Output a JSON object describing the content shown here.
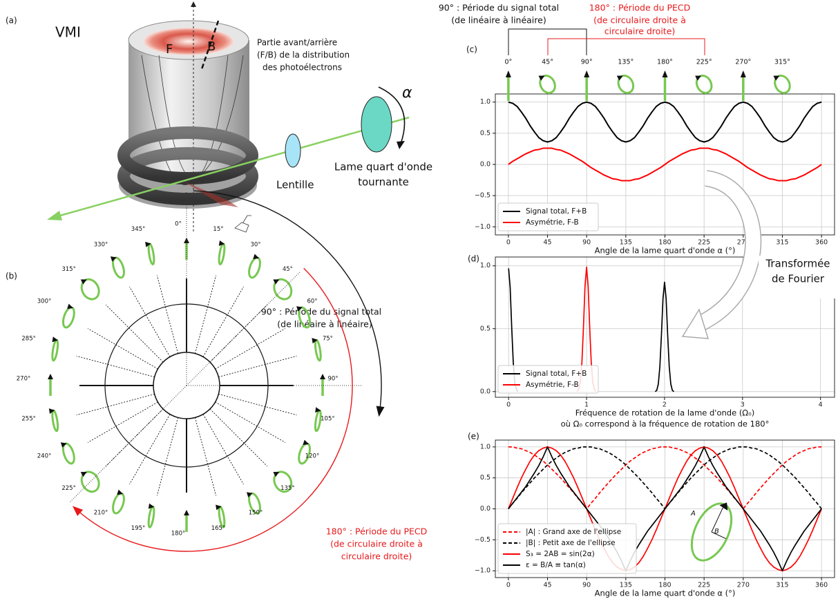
{
  "diagram": {
    "panel": "(a)",
    "title": "VMI",
    "front": "F",
    "back": "B",
    "distribution_label": [
      "Partie avant/arrière",
      "(F/B) de la distribution",
      "des photoélectrons"
    ],
    "lens": "Lentille",
    "waveplate": [
      "Lame quart d'onde",
      "tournante"
    ],
    "angle_symbol": "α"
  },
  "polar_diagram": {
    "panel": "(b)",
    "angles": [
      {
        "value": 0,
        "label": "0°"
      },
      {
        "value": 15,
        "label": "15°"
      },
      {
        "value": 30,
        "label": "30°"
      },
      {
        "value": 45,
        "label": "45°"
      },
      {
        "value": 60,
        "label": "60°"
      },
      {
        "value": 75,
        "label": "75°"
      },
      {
        "value": 90,
        "label": "90°"
      },
      {
        "value": 105,
        "label": "105°"
      },
      {
        "value": 120,
        "label": "120°"
      },
      {
        "value": 135,
        "label": "135°"
      },
      {
        "value": 150,
        "label": "150°"
      },
      {
        "value": 165,
        "label": "165°"
      },
      {
        "value": 180,
        "label": "180°"
      },
      {
        "value": 195,
        "label": "195°"
      },
      {
        "value": 210,
        "label": "210°"
      },
      {
        "value": 225,
        "label": "225°"
      },
      {
        "value": 240,
        "label": "240°"
      },
      {
        "value": 255,
        "label": "255°"
      },
      {
        "value": 270,
        "label": "270°"
      },
      {
        "value": 285,
        "label": "285°"
      },
      {
        "value": 300,
        "label": "300°"
      },
      {
        "value": 315,
        "label": "315°"
      },
      {
        "value": 330,
        "label": "330°"
      },
      {
        "value": 345,
        "label": "345°"
      }
    ]
  },
  "annotations": {
    "total_period_top": [
      "90° : Période du signal total",
      "(de linéaire à linéaire)"
    ],
    "pecd_period_top": [
      "180° : Période du PECD",
      "(de circulaire droite à",
      "circulaire droite)"
    ],
    "total_period_polar": [
      "90° : Période du signal total",
      "(de linéaire à linéaire)"
    ],
    "pecd_period_polar": [
      "180° : Période du PECD",
      "(de circulaire droite à",
      "circulaire droite)"
    ],
    "fourier": [
      "Transformée",
      "de Fourier"
    ]
  },
  "chart_data": [
    {
      "type": "line",
      "panel": "(c)",
      "xlabel": "Angle de la lame quart d'onde α (°)",
      "x": [
        0,
        5,
        10,
        15,
        20,
        25,
        30,
        35,
        40,
        45,
        50,
        55,
        60,
        65,
        70,
        75,
        80,
        85,
        90,
        95,
        100,
        105,
        110,
        115,
        120,
        125,
        130,
        135,
        140,
        145,
        150,
        155,
        160,
        165,
        170,
        175,
        180,
        185,
        190,
        195,
        200,
        205,
        210,
        215,
        220,
        225,
        230,
        235,
        240,
        245,
        250,
        255,
        260,
        265,
        270,
        275,
        280,
        285,
        290,
        295,
        300,
        305,
        310,
        315,
        320,
        325,
        330,
        335,
        340,
        345,
        350,
        355,
        360
      ],
      "series": [
        {
          "name": "Signal total, F+B",
          "color": "#000000",
          "values": [
            1,
            0.98,
            0.93,
            0.84,
            0.74,
            0.62,
            0.52,
            0.43,
            0.38,
            0.36,
            0.38,
            0.43,
            0.52,
            0.62,
            0.74,
            0.84,
            0.93,
            0.98,
            1,
            0.98,
            0.93,
            0.84,
            0.74,
            0.62,
            0.52,
            0.43,
            0.38,
            0.36,
            0.38,
            0.43,
            0.52,
            0.62,
            0.74,
            0.84,
            0.93,
            0.98,
            1,
            0.98,
            0.93,
            0.84,
            0.74,
            0.62,
            0.52,
            0.43,
            0.38,
            0.36,
            0.38,
            0.43,
            0.52,
            0.62,
            0.74,
            0.84,
            0.93,
            0.98,
            1,
            0.98,
            0.93,
            0.84,
            0.74,
            0.62,
            0.52,
            0.43,
            0.38,
            0.36,
            0.38,
            0.43,
            0.52,
            0.62,
            0.74,
            0.84,
            0.93,
            0.98,
            1
          ]
        },
        {
          "name": "Asymétrie, F-B",
          "color": "#ff0000",
          "values": [
            0,
            0.05,
            0.09,
            0.13,
            0.17,
            0.2,
            0.23,
            0.24,
            0.26,
            0.26,
            0.26,
            0.24,
            0.23,
            0.2,
            0.17,
            0.13,
            0.09,
            0.05,
            0,
            -0.05,
            -0.09,
            -0.13,
            -0.17,
            -0.2,
            -0.23,
            -0.24,
            -0.26,
            -0.26,
            -0.26,
            -0.24,
            -0.23,
            -0.2,
            -0.17,
            -0.13,
            -0.09,
            -0.05,
            0,
            0.05,
            0.09,
            0.13,
            0.17,
            0.2,
            0.23,
            0.24,
            0.26,
            0.26,
            0.26,
            0.24,
            0.23,
            0.2,
            0.17,
            0.13,
            0.09,
            0.05,
            0,
            -0.05,
            -0.09,
            -0.13,
            -0.17,
            -0.2,
            -0.23,
            -0.24,
            -0.26,
            -0.26,
            -0.26,
            -0.24,
            -0.23,
            -0.2,
            -0.17,
            -0.13,
            -0.09,
            -0.05,
            0
          ]
        }
      ],
      "xlim": [
        -15,
        375
      ],
      "ylim": [
        -1.13,
        1.13
      ],
      "xticks": [
        0,
        45,
        90,
        135,
        180,
        225,
        270,
        315,
        360
      ],
      "yticks": [
        {
          "value": -1,
          "label": "−1.0"
        },
        {
          "value": -0.5,
          "label": "−0.5"
        },
        {
          "value": 0,
          "label": "0.0"
        },
        {
          "value": 0.5,
          "label": "0.5"
        },
        {
          "value": 1,
          "label": "1.0"
        }
      ],
      "grid": true,
      "legend": "lower left",
      "polarization_markers": [
        {
          "value": 0,
          "label": "0°"
        },
        {
          "value": 45,
          "label": "45°"
        },
        {
          "value": 90,
          "label": "90°"
        },
        {
          "value": 135,
          "label": "135°"
        },
        {
          "value": 180,
          "label": "180°"
        },
        {
          "value": 225,
          "label": "225°"
        },
        {
          "value": 270,
          "label": "270°"
        },
        {
          "value": 315,
          "label": "315°"
        }
      ]
    },
    {
      "type": "line",
      "panel": "(d)",
      "xlabel": [
        "Fréquence de rotation de la lame d'onde (Ω₀)",
        "où Ω₀ correspond à la fréquence de rotation de 180°"
      ],
      "series": [
        {
          "name": "Signal total, F+B",
          "color": "#000000",
          "x": [
            0,
            0.02,
            0.04,
            0.06,
            0.08,
            0.1,
            0.12,
            1,
            1.88,
            1.9,
            1.92,
            1.94,
            1.96,
            1.98,
            2,
            2.02,
            2.04,
            2.06,
            2.08,
            2.1,
            2.12
          ],
          "values": [
            0.98,
            0.83,
            0.51,
            0.23,
            0.07,
            0.02,
            0,
            null,
            0,
            0.01,
            0.06,
            0.2,
            0.45,
            0.74,
            0.87,
            0.74,
            0.45,
            0.2,
            0.06,
            0.01,
            0
          ]
        },
        {
          "name": "Asymétrie, F-B",
          "color": "#ff0000",
          "x": [
            0.88,
            0.9,
            0.92,
            0.94,
            0.96,
            0.98,
            1,
            1.02,
            1.04,
            1.06,
            1.08,
            1.1,
            1.12
          ],
          "values": [
            0,
            0.02,
            0.07,
            0.23,
            0.51,
            0.84,
            0.99,
            0.84,
            0.51,
            0.23,
            0.07,
            0.02,
            0
          ]
        }
      ],
      "xlim": [
        -0.17,
        4.18
      ],
      "ylim": [
        -0.045,
        1.07
      ],
      "xticks": [
        0,
        1,
        2,
        3,
        4
      ],
      "yticks": [
        {
          "value": 0,
          "label": "0.0"
        },
        {
          "value": 0.5,
          "label": "0.5"
        },
        {
          "value": 1,
          "label": "1.0"
        }
      ],
      "grid": true,
      "legend": "lower left"
    },
    {
      "type": "line",
      "panel": "(e)",
      "xlabel": "Angle de la lame quart d'onde α (°)",
      "x": [
        0,
        5,
        10,
        15,
        20,
        25,
        30,
        35,
        40,
        45,
        50,
        55,
        60,
        65,
        70,
        75,
        80,
        85,
        90,
        95,
        100,
        105,
        110,
        115,
        120,
        125,
        130,
        135,
        140,
        145,
        150,
        155,
        160,
        165,
        170,
        175,
        180,
        185,
        190,
        195,
        200,
        205,
        210,
        215,
        220,
        225,
        230,
        235,
        240,
        245,
        250,
        255,
        260,
        265,
        270,
        275,
        280,
        285,
        290,
        295,
        300,
        305,
        310,
        315,
        320,
        325,
        330,
        335,
        340,
        345,
        350,
        355,
        360
      ],
      "series": [
        {
          "name": "|A| : Grand axe de l'ellipse",
          "color": "#ff0000",
          "linestyle": "dashed",
          "values": [
            1,
            1,
            0.98,
            0.97,
            0.94,
            0.91,
            0.87,
            0.82,
            0.77,
            0.71,
            0.64,
            0.57,
            0.5,
            0.42,
            0.34,
            0.26,
            0.17,
            0.09,
            0,
            0.09,
            0.17,
            0.26,
            0.34,
            0.42,
            0.5,
            0.57,
            0.64,
            0.71,
            0.77,
            0.82,
            0.87,
            0.91,
            0.94,
            0.97,
            0.98,
            1,
            1,
            1,
            0.98,
            0.97,
            0.94,
            0.91,
            0.87,
            0.82,
            0.77,
            0.71,
            0.64,
            0.57,
            0.5,
            0.42,
            0.34,
            0.26,
            0.17,
            0.09,
            0,
            0.09,
            0.17,
            0.26,
            0.34,
            0.42,
            0.5,
            0.57,
            0.64,
            0.71,
            0.77,
            0.82,
            0.87,
            0.91,
            0.94,
            0.97,
            0.98,
            1,
            1
          ]
        },
        {
          "name": "|B| : Petit axe de l'ellipse",
          "color": "#000000",
          "linestyle": "dashed",
          "values": [
            0,
            0.09,
            0.17,
            0.26,
            0.34,
            0.42,
            0.5,
            0.57,
            0.64,
            0.71,
            0.77,
            0.82,
            0.87,
            0.91,
            0.94,
            0.97,
            0.98,
            1,
            1,
            1,
            0.98,
            0.97,
            0.94,
            0.91,
            0.87,
            0.82,
            0.77,
            0.71,
            0.64,
            0.57,
            0.5,
            0.42,
            0.34,
            0.26,
            0.17,
            0.09,
            0,
            0.09,
            0.17,
            0.26,
            0.34,
            0.42,
            0.5,
            0.57,
            0.64,
            0.71,
            0.77,
            0.82,
            0.87,
            0.91,
            0.94,
            0.97,
            0.98,
            1,
            1,
            1,
            0.98,
            0.97,
            0.94,
            0.91,
            0.87,
            0.82,
            0.77,
            0.71,
            0.64,
            0.57,
            0.5,
            0.42,
            0.34,
            0.26,
            0.17,
            0.09,
            0
          ]
        },
        {
          "name": "S₃ = 2AB = sin(2α)",
          "color": "#ff0000",
          "linestyle": "solid",
          "values": [
            0,
            0.17,
            0.34,
            0.5,
            0.64,
            0.77,
            0.87,
            0.94,
            0.98,
            1,
            0.98,
            0.94,
            0.87,
            0.77,
            0.64,
            0.5,
            0.34,
            0.17,
            0,
            -0.17,
            -0.34,
            -0.5,
            -0.64,
            -0.77,
            -0.87,
            -0.94,
            -0.98,
            -1,
            -0.98,
            -0.94,
            -0.87,
            -0.77,
            -0.64,
            -0.5,
            -0.34,
            -0.17,
            0,
            0.17,
            0.34,
            0.5,
            0.64,
            0.77,
            0.87,
            0.94,
            0.98,
            1,
            0.98,
            0.94,
            0.87,
            0.77,
            0.64,
            0.5,
            0.34,
            0.17,
            0,
            -0.17,
            -0.34,
            -0.5,
            -0.64,
            -0.77,
            -0.87,
            -0.94,
            -0.98,
            -1,
            -0.98,
            -0.94,
            -0.87,
            -0.77,
            -0.64,
            -0.5,
            -0.34,
            -0.17,
            0
          ]
        },
        {
          "name": "ε = B/A ≡ tan(α)",
          "color": "#000000",
          "linestyle": "solid",
          "values": [
            0,
            0.09,
            0.18,
            0.27,
            0.36,
            0.47,
            0.58,
            0.7,
            0.84,
            1,
            0.84,
            0.7,
            0.58,
            0.47,
            0.36,
            0.27,
            0.18,
            0.09,
            0,
            -0.09,
            -0.18,
            -0.27,
            -0.36,
            -0.47,
            -0.58,
            -0.7,
            -0.84,
            -1,
            -0.84,
            -0.7,
            -0.58,
            -0.47,
            -0.36,
            -0.27,
            -0.18,
            -0.09,
            0,
            0.09,
            0.18,
            0.27,
            0.36,
            0.47,
            0.58,
            0.7,
            0.84,
            1,
            0.84,
            0.7,
            0.58,
            0.47,
            0.36,
            0.27,
            0.18,
            0.09,
            0,
            -0.09,
            -0.18,
            -0.27,
            -0.36,
            -0.47,
            -0.58,
            -0.7,
            -0.84,
            -1,
            -0.84,
            -0.7,
            -0.58,
            -0.47,
            -0.36,
            -0.27,
            -0.18,
            -0.09,
            0
          ]
        }
      ],
      "xlim": [
        -15,
        375
      ],
      "ylim": [
        -1.11,
        1.11
      ],
      "xticks": [
        0,
        45,
        90,
        135,
        180,
        225,
        270,
        315,
        360
      ],
      "yticks": [
        {
          "value": -1,
          "label": "−1.0"
        },
        {
          "value": -0.5,
          "label": "−0.5"
        },
        {
          "value": 0,
          "label": "0.0"
        },
        {
          "value": 0.5,
          "label": "0.5"
        },
        {
          "value": 1,
          "label": "1.0"
        }
      ],
      "grid": true,
      "legend": "lower left",
      "inset_labels": [
        "A",
        "B"
      ]
    }
  ]
}
